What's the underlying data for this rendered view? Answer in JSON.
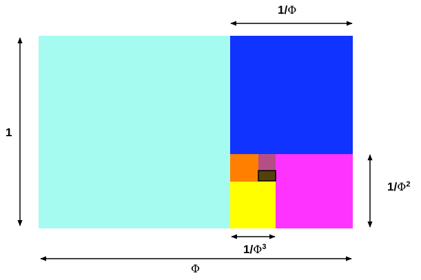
{
  "colors": {
    "square_1": "#a5fbf0",
    "square_phi_inv": "#1133ff",
    "square_phi_inv2": "#ff33ff",
    "square_phi_inv3": "#ffff00",
    "square_phi_inv4": "#ff7f00",
    "square_phi_inv5": "#b64e86",
    "square_phi_inv6": "#55400c",
    "arrow": "#000000"
  },
  "labels": {
    "height_1": {
      "num": "1"
    },
    "top_width": {
      "num": "1/",
      "sym": "Φ"
    },
    "right_height": {
      "num": "1/",
      "sym": "Φ",
      "exp": "2"
    },
    "small_width": {
      "num": "1/",
      "sym": "Φ",
      "exp": "3"
    },
    "total_width": {
      "sym": "Φ"
    }
  }
}
